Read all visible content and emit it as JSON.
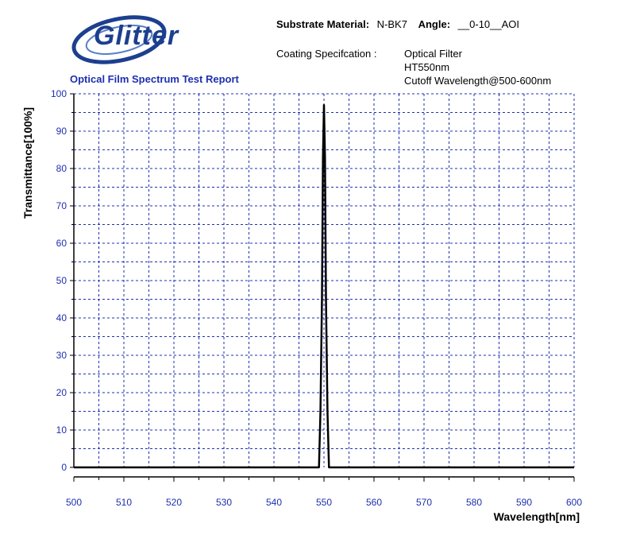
{
  "header": {
    "logo_text": "Glitter",
    "report_title": "Optical Film Spectrum Test Report",
    "substrate_label": "Substrate Material:",
    "substrate_value": "N-BK7",
    "angle_label": "Angle:",
    "angle_value": "__0-10__AOI",
    "coating_label": "Coating Specifcation :",
    "coating_lines": [
      "Optical Filter",
      "HT550nm",
      "Cutoff Wavelength@500-600nm"
    ]
  },
  "colors": {
    "axis_tick_labels": "#1f2fb0",
    "grid": "#1f2fb0",
    "curve": "#000000",
    "logo": "#1c3f8f"
  },
  "chart_data": {
    "type": "line",
    "title": "",
    "xlabel": "Wavelength[nm]",
    "ylabel": "Transmittance[100%]",
    "xlim": [
      500,
      600
    ],
    "ylim": [
      0,
      100
    ],
    "xticks": [
      500,
      510,
      520,
      530,
      540,
      550,
      560,
      570,
      580,
      590,
      600
    ],
    "yticks": [
      0,
      10,
      20,
      30,
      40,
      50,
      60,
      70,
      80,
      90,
      100
    ],
    "grid": true,
    "series": [
      {
        "x": [
          500,
          549.0,
          549.3,
          549.6,
          549.8,
          550.0,
          550.2,
          550.4,
          550.7,
          551.0,
          600
        ],
        "y": [
          0,
          0,
          15,
          45,
          83,
          97,
          83,
          45,
          15,
          0,
          0
        ]
      }
    ]
  }
}
